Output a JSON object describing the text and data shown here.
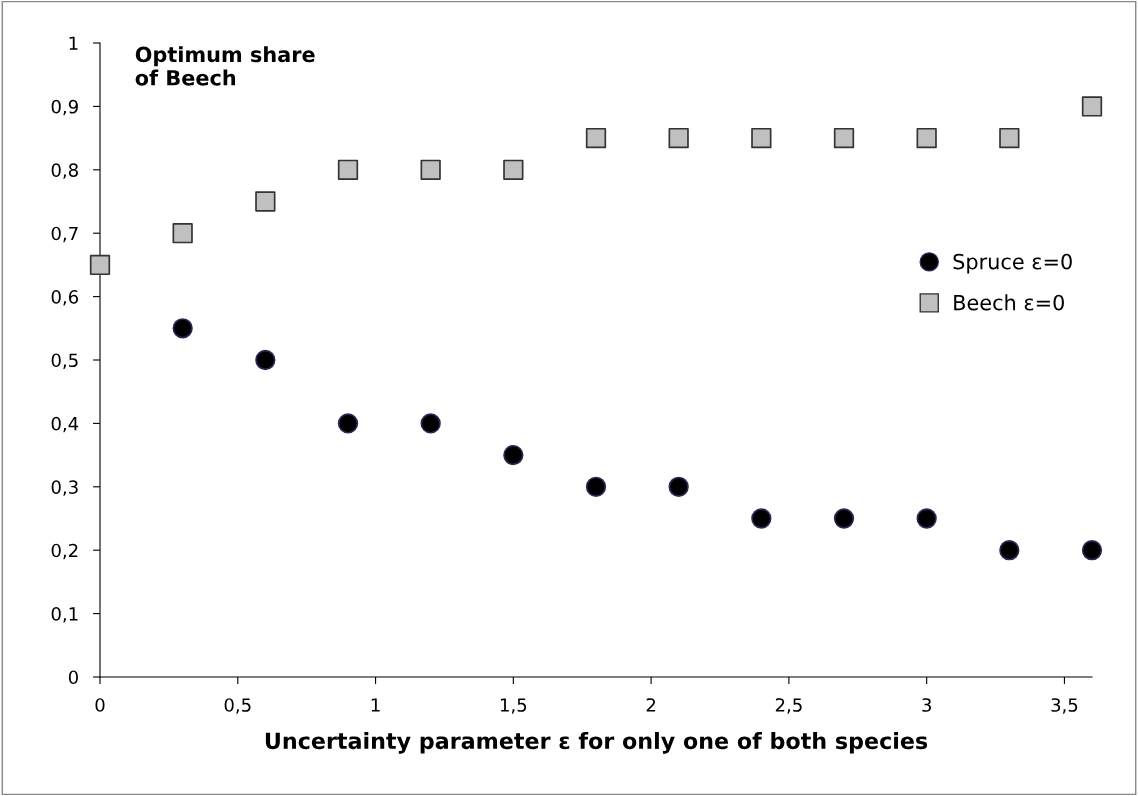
{
  "chart_data": {
    "type": "scatter",
    "ylabel": "Optimum share\nof Beech",
    "xlabel": "Uncertainty parameter ε for only one of both species",
    "series": [
      {
        "name": "Spruce ε=0",
        "color": "#000000",
        "marker": "circle",
        "x": [
          0.3,
          0.6,
          0.9,
          1.2,
          1.5,
          1.8,
          2.1,
          2.4,
          2.7,
          3.0,
          3.3,
          3.6
        ],
        "values": [
          0.55,
          0.5,
          0.4,
          0.4,
          0.35,
          0.3,
          0.3,
          0.25,
          0.25,
          0.25,
          0.2,
          0.2
        ]
      },
      {
        "name": "Beech ε=0",
        "color": "#c0c0c0",
        "marker": "square",
        "x": [
          0,
          0.3,
          0.6,
          0.9,
          1.2,
          1.5,
          1.8,
          2.1,
          2.4,
          2.7,
          3.0,
          3.3,
          3.6
        ],
        "values": [
          0.65,
          0.7,
          0.75,
          0.8,
          0.8,
          0.8,
          0.85,
          0.85,
          0.85,
          0.85,
          0.85,
          0.85,
          0.9
        ]
      }
    ],
    "xlim": [
      0,
      3.6
    ],
    "xticks": [
      0,
      {
        "value": 0.5,
        "label": "0,5"
      },
      1,
      {
        "value": 1.5,
        "label": "1,5"
      },
      2,
      {
        "value": 2.5,
        "label": "2,5"
      },
      3,
      {
        "value": 3.5,
        "label": "3,5"
      }
    ],
    "ylim": [
      0,
      1
    ],
    "yticks": [
      0,
      {
        "value": 0.1,
        "label": "0,1"
      },
      {
        "value": 0.2,
        "label": "0,2"
      },
      {
        "value": 0.3,
        "label": "0,3"
      },
      {
        "value": 0.4,
        "label": "0,4"
      },
      {
        "value": 0.5,
        "label": "0,5"
      },
      {
        "value": 0.6,
        "label": "0,6"
      },
      {
        "value": 0.7,
        "label": "0,7"
      },
      {
        "value": 0.8,
        "label": "0,8"
      },
      {
        "value": 0.9,
        "label": "0,9"
      },
      1
    ],
    "grid": false,
    "legend": "right"
  }
}
